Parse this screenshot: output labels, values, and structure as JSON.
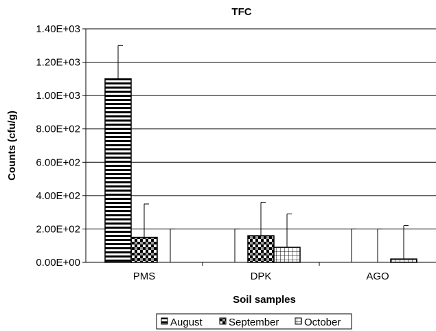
{
  "chart_data": {
    "type": "bar",
    "title": "TFC",
    "xlabel": "Soil samples",
    "ylabel": "Counts (cfu/g)",
    "ylim": [
      0,
      1400
    ],
    "yticks": [
      0,
      200,
      400,
      600,
      800,
      1000,
      1200,
      1400
    ],
    "ytick_labels": [
      "0.00E+00",
      "2.00E+02",
      "4.00E+02",
      "6.00E+02",
      "8.00E+02",
      "1.00E+03",
      "1.20E+03",
      "1.40E+03"
    ],
    "categories": [
      "PMS",
      "DPK",
      "AGO"
    ],
    "series": [
      {
        "name": "August",
        "values": [
          1100,
          0,
          0
        ],
        "error_upper": [
          1300,
          200,
          200
        ],
        "pattern": "horizontal-stripes"
      },
      {
        "name": "September",
        "values": [
          150,
          160,
          0
        ],
        "error_upper": [
          350,
          360,
          200
        ],
        "pattern": "checker"
      },
      {
        "name": "October",
        "values": [
          0,
          90,
          20
        ],
        "error_upper": [
          200,
          290,
          220
        ],
        "pattern": "grid"
      }
    ],
    "grid": true,
    "legend": "bottom"
  }
}
